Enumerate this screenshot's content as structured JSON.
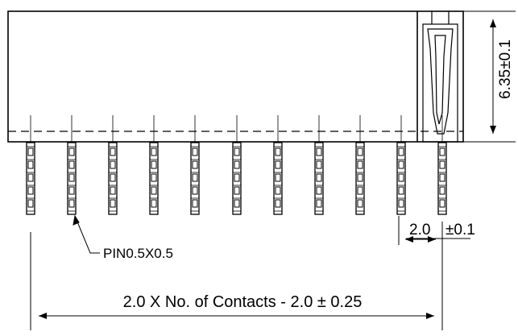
{
  "drawing": {
    "pin_count": 11,
    "labels": {
      "height_dim": "6.35±0.1",
      "pitch_value": "2.0",
      "pitch_tol": "±0.1",
      "pin_size": "PIN0.5X0.5",
      "length_formula": "2.0 X No. of Contacts - 2.0 ± 0.25"
    }
  }
}
